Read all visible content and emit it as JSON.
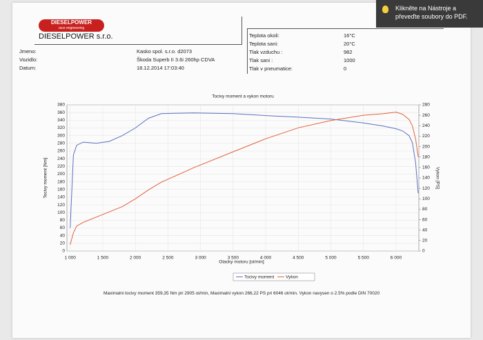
{
  "document": {
    "logo": "DIESELPOWER",
    "logo_sub": "race engineering",
    "company": "DIESELPOWER s.r.o.",
    "info": [
      [
        "Jmeno:",
        "Kasko spol. s.r.o. d2073"
      ],
      [
        "Vozidlo:",
        "Škoda Superb II 3.6i 260hp CDVA"
      ],
      [
        "Datum:",
        "18.12.2014 17:03:40"
      ]
    ],
    "conditions": [
      [
        "Teplota okoli:",
        "16°C"
      ],
      [
        "Teplota sani:",
        "20°C"
      ],
      [
        "Tlak vzduchu :",
        "982"
      ],
      [
        "Tlak sani :",
        "1000"
      ],
      [
        "Tlak v pneumatice:",
        "0"
      ]
    ],
    "footer": "Maximalni tocivy moment 359,35 Nm pri 2905 ot/min, Maximalni vykon 266,22 PS pri 6046 ot/min. Vykon navysen o 2.5% podle DIN 70020",
    "tooltip": "Klikněte na Nástroje a převeďte soubory do PDF."
  },
  "chart_data": {
    "type": "line",
    "title": "Tocivy moment a vykon motoru",
    "xlabel": "Otacky motoru [ot/min]",
    "ylabel": "Tocivy moment [Nm]",
    "y2label": "Vykon [PS]",
    "x": [
      1000,
      1050,
      1100,
      1200,
      1400,
      1600,
      1800,
      2000,
      2200,
      2400,
      2600,
      2900,
      3500,
      4000,
      4500,
      5000,
      5500,
      5800,
      6000,
      6100,
      6200,
      6250,
      6300,
      6340
    ],
    "series": [
      {
        "name": "Tocivy moment",
        "color": "#5a6fc0",
        "values": [
          60,
          250,
          275,
          283,
          280,
          285,
          300,
          320,
          345,
          357,
          358,
          359,
          357,
          352,
          348,
          343,
          333,
          325,
          318,
          312,
          300,
          282,
          230,
          150
        ]
      },
      {
        "name": "Vykon",
        "color": "#e0603a",
        "axis": "y2",
        "values": [
          12,
          35,
          48,
          55,
          65,
          75,
          85,
          100,
          117,
          132,
          143,
          160,
          190,
          215,
          236,
          250,
          260,
          263,
          266,
          262,
          252,
          240,
          215,
          180
        ]
      }
    ],
    "xlim": [
      950,
      6350
    ],
    "xticks": [
      {
        "value": 1000,
        "label": "1 000"
      },
      {
        "value": 1500,
        "label": "1 500"
      },
      {
        "value": 2000,
        "label": "2 000"
      },
      {
        "value": 2500,
        "label": "2 500"
      },
      {
        "value": 3000,
        "label": "3 000"
      },
      {
        "value": 3500,
        "label": "3 500"
      },
      {
        "value": 4000,
        "label": "4 000"
      },
      {
        "value": 4500,
        "label": "4 500"
      },
      {
        "value": 5000,
        "label": "5 000"
      },
      {
        "value": 5500,
        "label": "5 500"
      },
      {
        "value": 6000,
        "label": "6 000"
      }
    ],
    "ylim": [
      0,
      380
    ],
    "yticks": [
      0,
      20,
      40,
      60,
      80,
      100,
      120,
      140,
      160,
      180,
      200,
      220,
      240,
      260,
      280,
      300,
      320,
      340,
      360,
      380
    ],
    "y2lim": [
      0,
      280
    ],
    "y2ticks": [
      0,
      20,
      40,
      60,
      80,
      100,
      120,
      140,
      160,
      180,
      200,
      220,
      240,
      260,
      280
    ],
    "grid": true
  }
}
